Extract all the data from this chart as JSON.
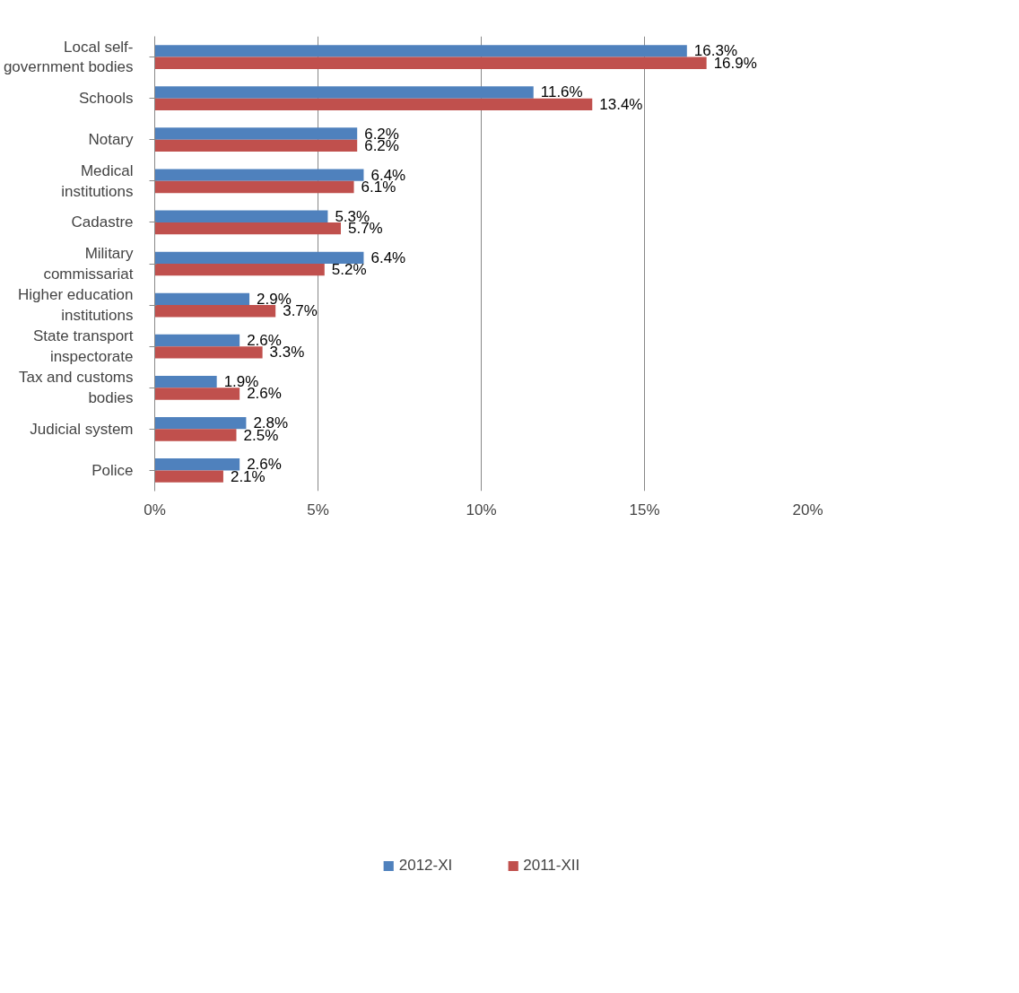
{
  "chart_data": {
    "type": "bar",
    "orientation": "horizontal",
    "categories": [
      "Local self-government bodies",
      "Schools",
      "Notary",
      "Medical institutions",
      "Cadastre",
      "Military commissariat",
      "Higher education institutions",
      "State transport inspectorate",
      "Tax and customs bodies",
      "Judicial system",
      "Police"
    ],
    "series": [
      {
        "name": "2012-XI",
        "color": "#4f81bd",
        "values": [
          16.3,
          11.6,
          6.2,
          6.4,
          5.3,
          6.4,
          2.9,
          2.6,
          1.9,
          2.8,
          2.6
        ],
        "value_labels": [
          "16.3%",
          "11.6%",
          "6.2%",
          "6.4%",
          "5.3%",
          "6.4%",
          "2.9%",
          "2.6%",
          "1.9%",
          "2.8%",
          "2.6%"
        ]
      },
      {
        "name": "2011-XII",
        "color": "#c0504d",
        "values": [
          16.9,
          13.4,
          6.2,
          6.1,
          5.7,
          5.2,
          3.7,
          3.3,
          2.6,
          2.5,
          2.1
        ],
        "value_labels": [
          "16.9%",
          "13.4%",
          "6.2%",
          "6.1%",
          "5.7%",
          "5.2%",
          "3.7%",
          "3.3%",
          "2.6%",
          "2.5%",
          "2.1%"
        ]
      }
    ],
    "xlim": [
      0,
      20
    ],
    "xticks": [
      {
        "value": 0,
        "label": "0%"
      },
      {
        "value": 5,
        "label": "5%"
      },
      {
        "value": 10,
        "label": "10%"
      },
      {
        "value": 15,
        "label": "15%"
      },
      {
        "value": 20,
        "label": "20%"
      }
    ],
    "grid": "x",
    "legend": "bottom"
  }
}
